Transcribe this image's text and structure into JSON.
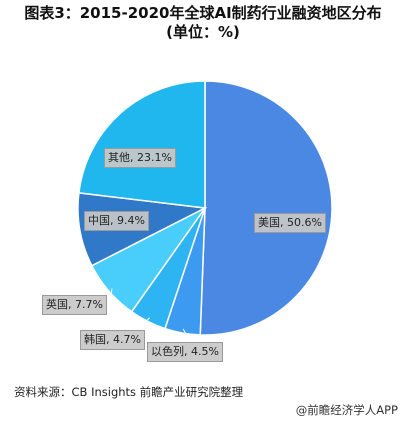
{
  "title_line1": "图表3：2015-2020年全球AI制药行业融资地区分布",
  "title_line2": "(单位：%)",
  "source": "资料来源：CB Insights 前瞻产业研究院整理",
  "footer": "@前瞻经济学人APP",
  "chart_data": {
    "type": "pie",
    "title": "图表3：2015-2020年全球AI制药行业融资地区分布 (单位：%)",
    "unit": "%",
    "slices": [
      {
        "name": "美国",
        "value": 50.6,
        "text": "美国, 50.6%",
        "color": "#4a88e3"
      },
      {
        "name": "以色列",
        "value": 4.5,
        "text": "以色列, 4.5%",
        "color": "#3c9bf0"
      },
      {
        "name": "韩国",
        "value": 4.7,
        "text": "韩国, 4.7%",
        "color": "#2eb4f2"
      },
      {
        "name": "英国",
        "value": 7.7,
        "text": "英国, 7.7%",
        "color": "#49cdfb"
      },
      {
        "name": "中国",
        "value": 9.4,
        "text": "中国, 9.4%",
        "color": "#3078c8"
      },
      {
        "name": "其他",
        "value": 23.1,
        "text": "其他, 23.1%",
        "color": "#20b7ef"
      }
    ]
  }
}
